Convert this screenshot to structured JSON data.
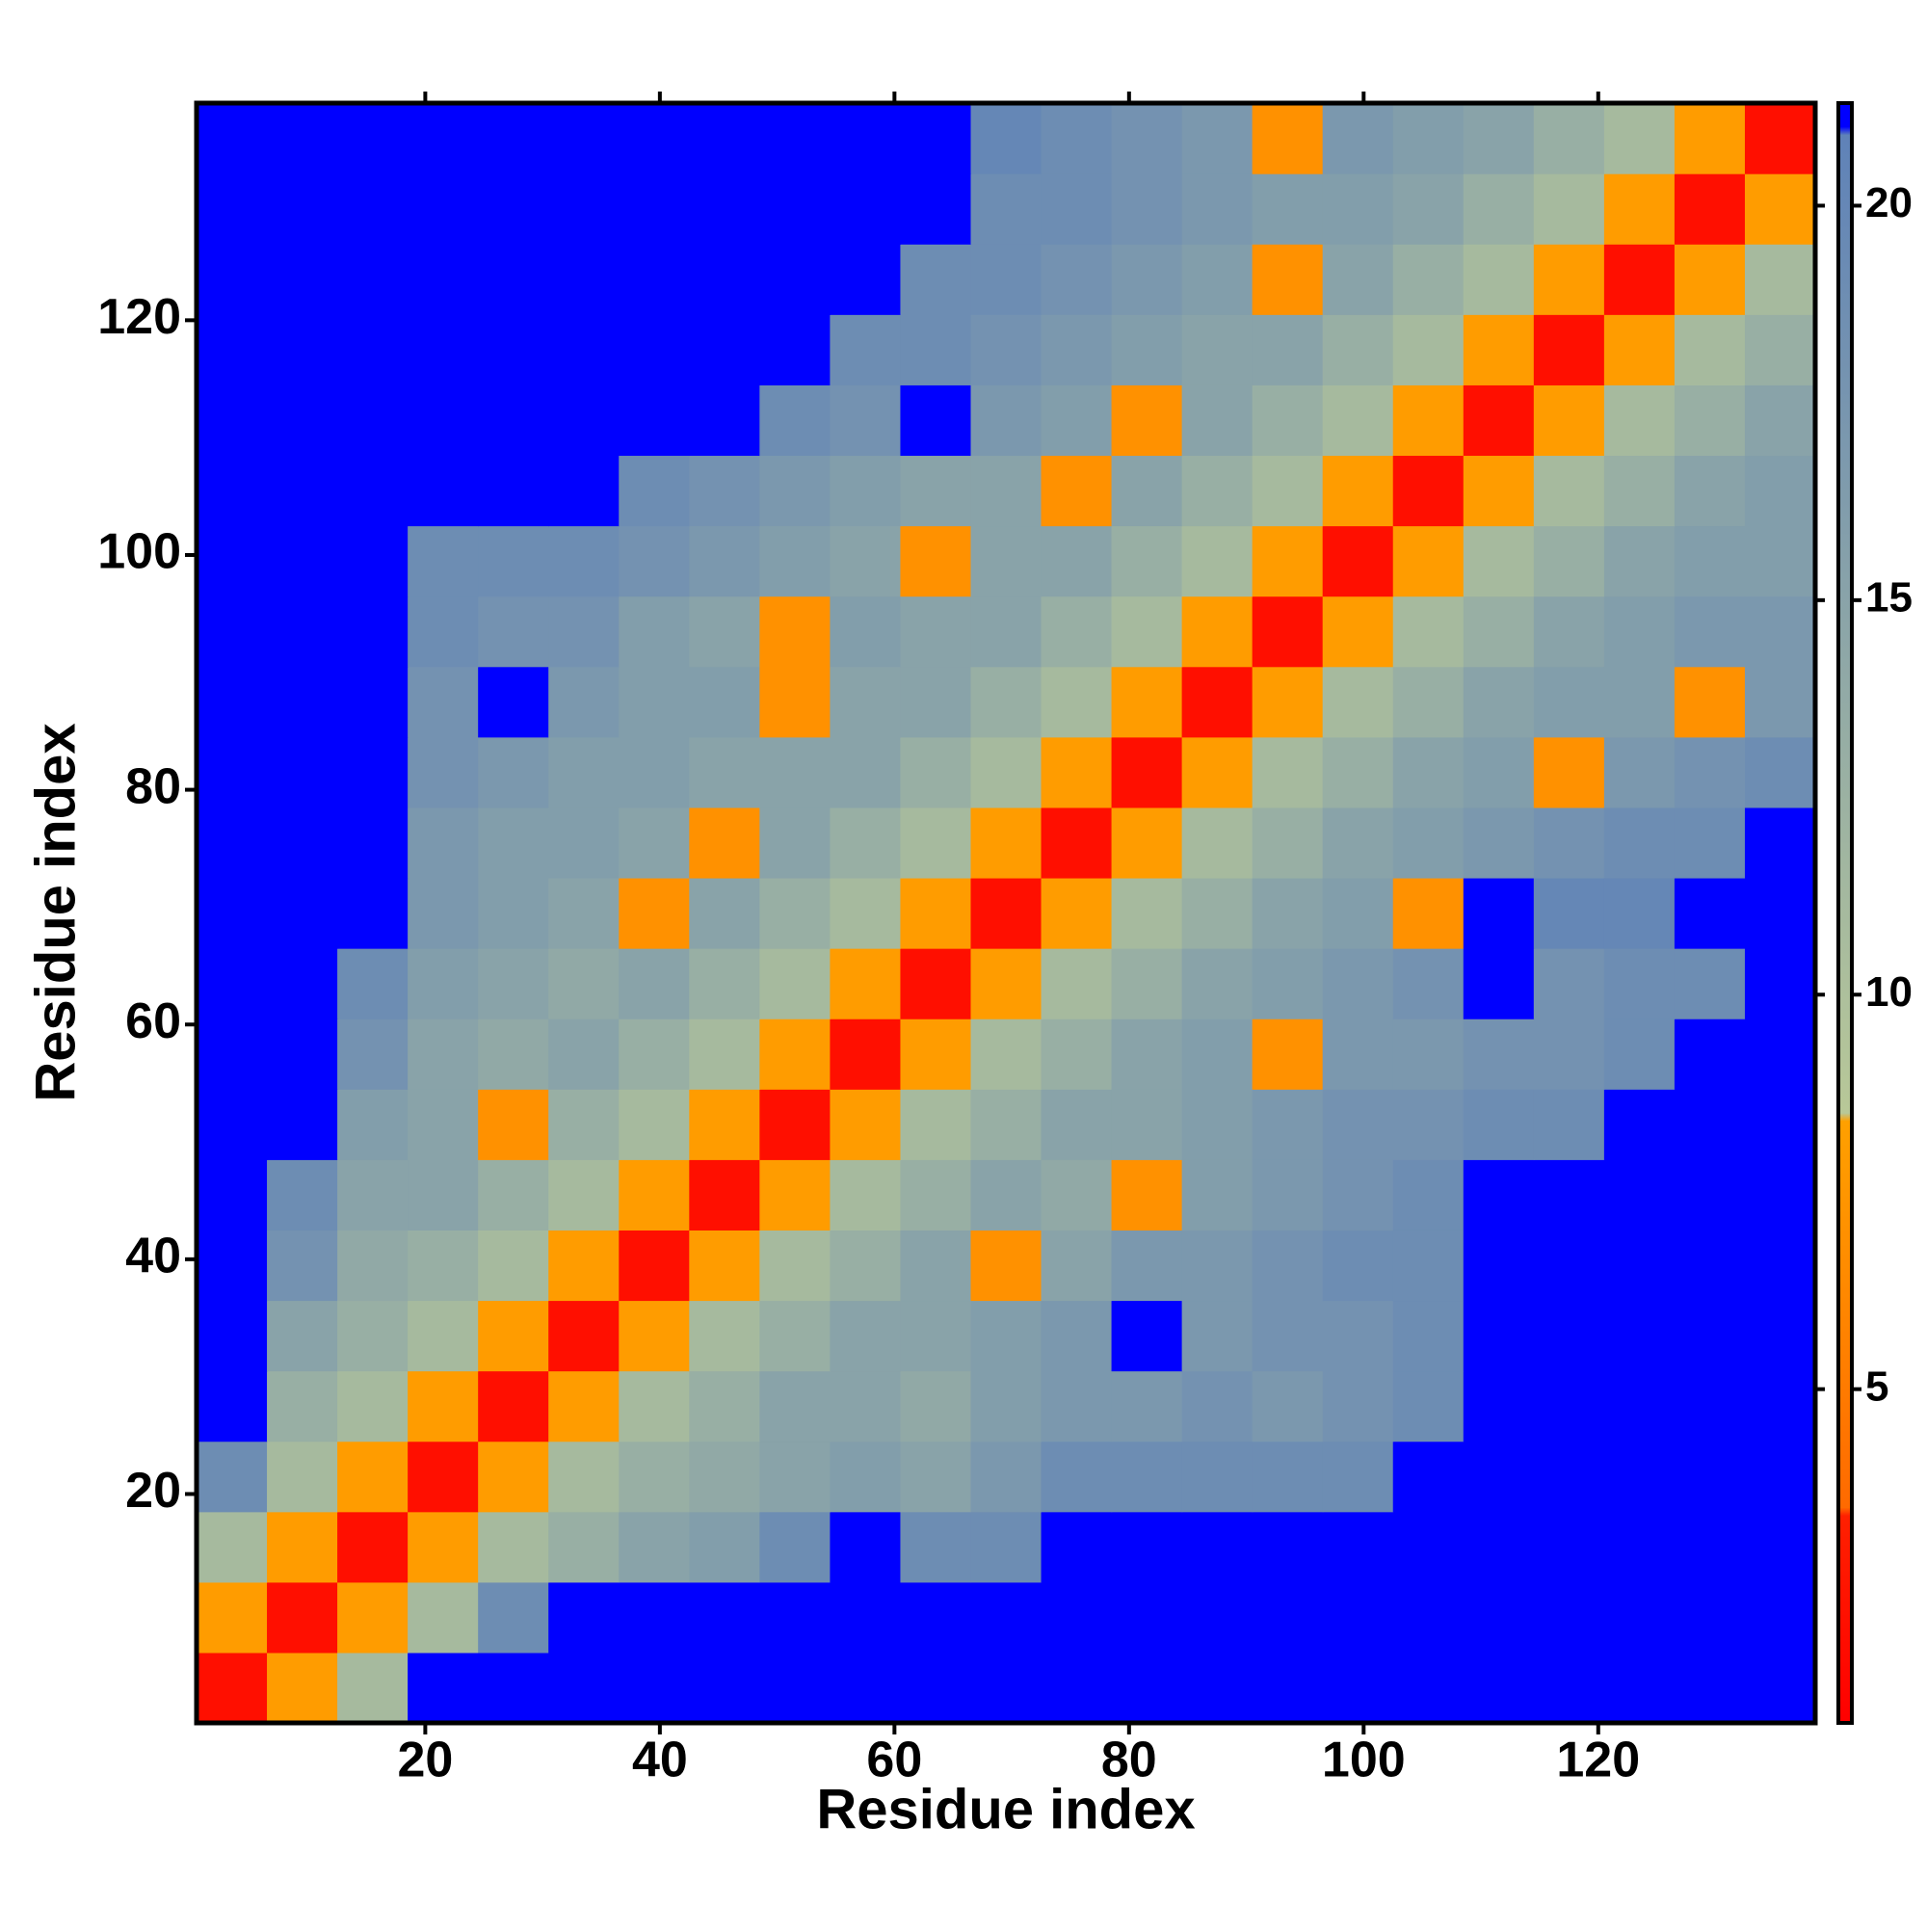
{
  "chart_data": {
    "type": "heatmap",
    "x_label": "Residue index",
    "y_label": "Residue index",
    "xlim": [
      0.5,
      138.5
    ],
    "ylim": [
      0.5,
      138.5
    ],
    "xticks": [
      20,
      40,
      60,
      80,
      100,
      120
    ],
    "yticks": [
      20,
      40,
      60,
      80,
      100,
      120
    ],
    "x_bins": [
      0.5,
      6.5,
      12.5,
      18.5,
      24.5,
      30.5,
      36.5,
      42.5,
      48.5,
      54.5,
      60.5,
      66.5,
      72.5,
      78.5,
      84.5,
      90.5,
      96.5,
      102.5,
      108.5,
      114.5,
      120.5,
      126.5,
      132.5,
      138.5
    ],
    "y_bins": [
      0.5,
      6.5,
      12.5,
      18.5,
      24.5,
      30.5,
      36.5,
      42.5,
      48.5,
      54.5,
      60.5,
      66.5,
      72.5,
      78.5,
      84.5,
      90.5,
      96.5,
      102.5,
      108.5,
      114.5,
      120.5,
      126.5,
      132.5,
      138.5
    ],
    "z": [
      [
        2,
        8,
        11,
        21.3,
        21.3,
        21.3,
        21.3,
        21.3,
        21.3,
        21.3,
        21.3,
        21.3,
        21.3,
        21.3,
        21.3,
        21.3,
        21.3,
        21.3,
        21.3,
        21.3,
        21.3,
        21.3,
        21.3
      ],
      [
        8,
        2,
        8,
        11,
        19,
        21.3,
        21.3,
        21.3,
        21.3,
        21.3,
        21.3,
        21.3,
        21.3,
        21.3,
        21.3,
        21.3,
        21.3,
        21.3,
        21.3,
        21.3,
        21.3,
        21.3,
        21.3
      ],
      [
        11,
        8,
        2,
        8,
        11,
        13,
        15,
        16,
        19,
        21.3,
        19,
        19,
        21.3,
        21.3,
        21.3,
        21.3,
        21.3,
        21.3,
        21.3,
        21.3,
        21.3,
        21.3,
        21.3
      ],
      [
        19,
        11,
        8,
        2,
        8,
        11,
        13,
        14,
        15,
        16,
        15,
        17,
        19,
        19,
        19,
        19,
        19,
        21.3,
        21.3,
        21.3,
        21.3,
        21.3,
        21.3
      ],
      [
        21.3,
        13,
        11,
        8,
        2,
        8,
        11,
        13,
        15,
        15,
        14,
        16,
        17,
        17,
        18,
        17,
        18,
        19,
        21.3,
        21.3,
        21.3,
        21.3,
        21.3
      ],
      [
        21.3,
        15,
        13,
        11,
        8,
        2,
        8,
        11,
        13,
        15,
        15,
        16,
        17,
        21.3,
        17,
        18,
        18,
        19,
        21.3,
        21.3,
        21.3,
        21.3,
        21.3
      ],
      [
        21.3,
        18,
        14,
        13,
        11,
        8,
        2,
        8,
        11,
        13,
        15,
        7,
        15,
        17,
        17,
        18,
        19,
        19,
        21.3,
        21.3,
        21.3,
        21.3,
        21.3
      ],
      [
        21.3,
        19,
        15,
        15,
        13,
        11,
        8,
        2,
        8,
        11,
        13,
        15,
        14,
        7,
        16,
        17,
        18,
        19,
        21.3,
        21.3,
        21.3,
        21.3,
        21.3
      ],
      [
        21.3,
        21.3,
        16,
        15,
        7,
        13,
        11,
        8,
        2,
        8,
        11,
        13,
        15,
        15,
        16,
        17,
        18,
        18,
        19,
        19,
        21.3,
        21.3,
        21.3
      ],
      [
        21.3,
        21.3,
        18,
        15,
        14,
        15,
        13,
        11,
        8,
        2,
        8,
        11,
        13,
        15,
        16,
        7,
        17,
        17,
        18,
        18,
        19,
        21.3,
        21.3
      ],
      [
        21.3,
        21.3,
        19,
        16,
        15,
        14,
        15,
        13,
        11,
        8,
        2,
        8,
        11,
        13,
        15,
        16,
        17,
        18,
        21.3,
        18,
        19,
        19,
        21.3
      ],
      [
        21.3,
        21.3,
        21.3,
        17,
        16,
        15,
        7,
        15,
        13,
        11,
        8,
        2,
        8,
        11,
        13,
        15,
        16,
        7,
        21.3,
        20,
        20,
        21.3,
        21.3
      ],
      [
        21.3,
        21.3,
        21.3,
        17,
        16,
        16,
        15,
        7,
        15,
        13,
        11,
        8,
        2,
        8,
        11,
        13,
        15,
        16,
        17,
        18,
        19,
        19,
        21.3
      ],
      [
        21.3,
        21.3,
        21.3,
        18,
        17,
        16,
        16,
        15,
        15,
        15,
        13,
        11,
        8,
        2,
        8,
        11,
        13,
        15,
        16,
        7,
        17,
        18,
        19
      ],
      [
        21.3,
        21.3,
        21.3,
        18,
        21.3,
        17,
        16,
        16,
        7,
        15,
        15,
        13,
        11,
        8,
        2,
        8,
        11,
        13,
        15,
        16,
        16,
        7,
        17
      ],
      [
        21.3,
        21.3,
        21.3,
        19,
        18,
        18,
        16,
        15,
        7,
        16,
        15,
        15,
        13,
        11,
        8,
        2,
        8,
        11,
        13,
        15,
        16,
        17,
        17
      ],
      [
        21.3,
        21.3,
        21.3,
        19,
        19,
        19,
        18,
        17,
        16,
        15,
        7,
        15,
        15,
        13,
        11,
        8,
        2,
        8,
        11,
        13,
        15,
        16,
        16
      ],
      [
        21.3,
        21.3,
        21.3,
        21.3,
        21.3,
        21.3,
        19,
        18,
        17,
        16,
        15,
        15,
        7,
        15,
        13,
        11,
        8,
        2,
        8,
        11,
        13,
        15,
        16
      ],
      [
        21.3,
        21.3,
        21.3,
        21.3,
        21.3,
        21.3,
        21.3,
        21.3,
        19,
        18,
        21.3,
        17,
        16,
        7,
        15,
        13,
        11,
        8,
        2,
        8,
        11,
        13,
        15
      ],
      [
        21.3,
        21.3,
        21.3,
        21.3,
        21.3,
        21.3,
        21.3,
        21.3,
        21.3,
        19,
        19,
        18,
        17,
        16,
        15,
        15,
        13,
        11,
        8,
        2,
        8,
        11,
        13
      ],
      [
        21.3,
        21.3,
        21.3,
        21.3,
        21.3,
        21.3,
        21.3,
        21.3,
        21.3,
        21.3,
        19,
        19,
        18,
        17,
        16,
        7,
        15,
        13,
        11,
        8,
        2,
        8,
        11
      ],
      [
        21.3,
        21.3,
        21.3,
        21.3,
        21.3,
        21.3,
        21.3,
        21.3,
        21.3,
        21.3,
        21.3,
        19,
        19,
        18,
        17,
        16,
        16,
        15,
        13,
        11,
        8,
        2,
        8
      ],
      [
        21.3,
        21.3,
        21.3,
        21.3,
        21.3,
        21.3,
        21.3,
        21.3,
        21.3,
        21.3,
        21.3,
        20,
        19,
        18,
        17,
        7,
        17,
        16,
        15,
        13,
        11,
        8,
        2
      ]
    ],
    "colorbar": {
      "clim": [
        0.77,
        21.3
      ],
      "ticks": [
        5,
        10,
        15,
        20
      ],
      "stops": [
        {
          "value": 0.77,
          "color": "#ff0000"
        },
        {
          "value": 3.4,
          "color": "#ff2000"
        },
        {
          "value": 3.5,
          "color": "#ff6a00"
        },
        {
          "value": 8.4,
          "color": "#ffa000"
        },
        {
          "value": 8.5,
          "color": "#b8c898"
        },
        {
          "value": 20.9,
          "color": "#5f82b8"
        },
        {
          "value": 21,
          "color": "#0000ff"
        },
        {
          "value": 21.3,
          "color": "#0000ff"
        }
      ]
    }
  }
}
